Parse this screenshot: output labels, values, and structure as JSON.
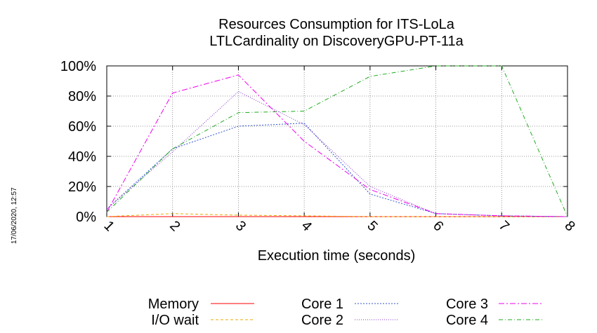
{
  "stamp": "17/06/2020, 12:57",
  "chart_data": {
    "type": "line",
    "title": [
      "Resources Consumption for ITS-LoLa",
      "LTLCardinality on DiscoveryGPU-PT-11a"
    ],
    "xlabel": "Execution time (seconds)",
    "ylabel": "",
    "x": [
      1,
      2,
      3,
      4,
      5,
      6,
      7,
      8
    ],
    "xlim": [
      1,
      8
    ],
    "ylim": [
      0,
      100
    ],
    "x_ticks": [
      "1",
      "2",
      "3",
      "4",
      "5",
      "6",
      "7",
      "8"
    ],
    "y_ticks": [
      "0%",
      "20%",
      "40%",
      "60%",
      "80%",
      "100%"
    ],
    "grid": true,
    "legend_position": "bottom",
    "series": [
      {
        "name": "Memory",
        "color": "#ff0000",
        "dash": "",
        "values": [
          0,
          0,
          0,
          0,
          0,
          0,
          0,
          0
        ]
      },
      {
        "name": "I/O wait",
        "color": "#e8a800",
        "dash": "4,3",
        "values": [
          0,
          2,
          1,
          0.5,
          0,
          0,
          0,
          0
        ]
      },
      {
        "name": "Core 1",
        "color": "#3355cc",
        "dash": "2,2",
        "values": [
          5,
          45,
          60,
          62,
          15,
          2,
          0.5,
          0
        ]
      },
      {
        "name": "Core 2",
        "color": "#8833cc",
        "dash": "1,2",
        "values": [
          5,
          43,
          83,
          61,
          20,
          2,
          0.5,
          0
        ]
      },
      {
        "name": "Core 3",
        "color": "#ee00ee",
        "dash": "8,3,2,3",
        "values": [
          3,
          82,
          94,
          50,
          18,
          2,
          0.5,
          0
        ]
      },
      {
        "name": "Core 4",
        "color": "#22aa22",
        "dash": "6,3,1,3",
        "values": [
          3,
          45,
          69,
          70,
          93,
          100,
          100,
          0
        ]
      }
    ]
  }
}
